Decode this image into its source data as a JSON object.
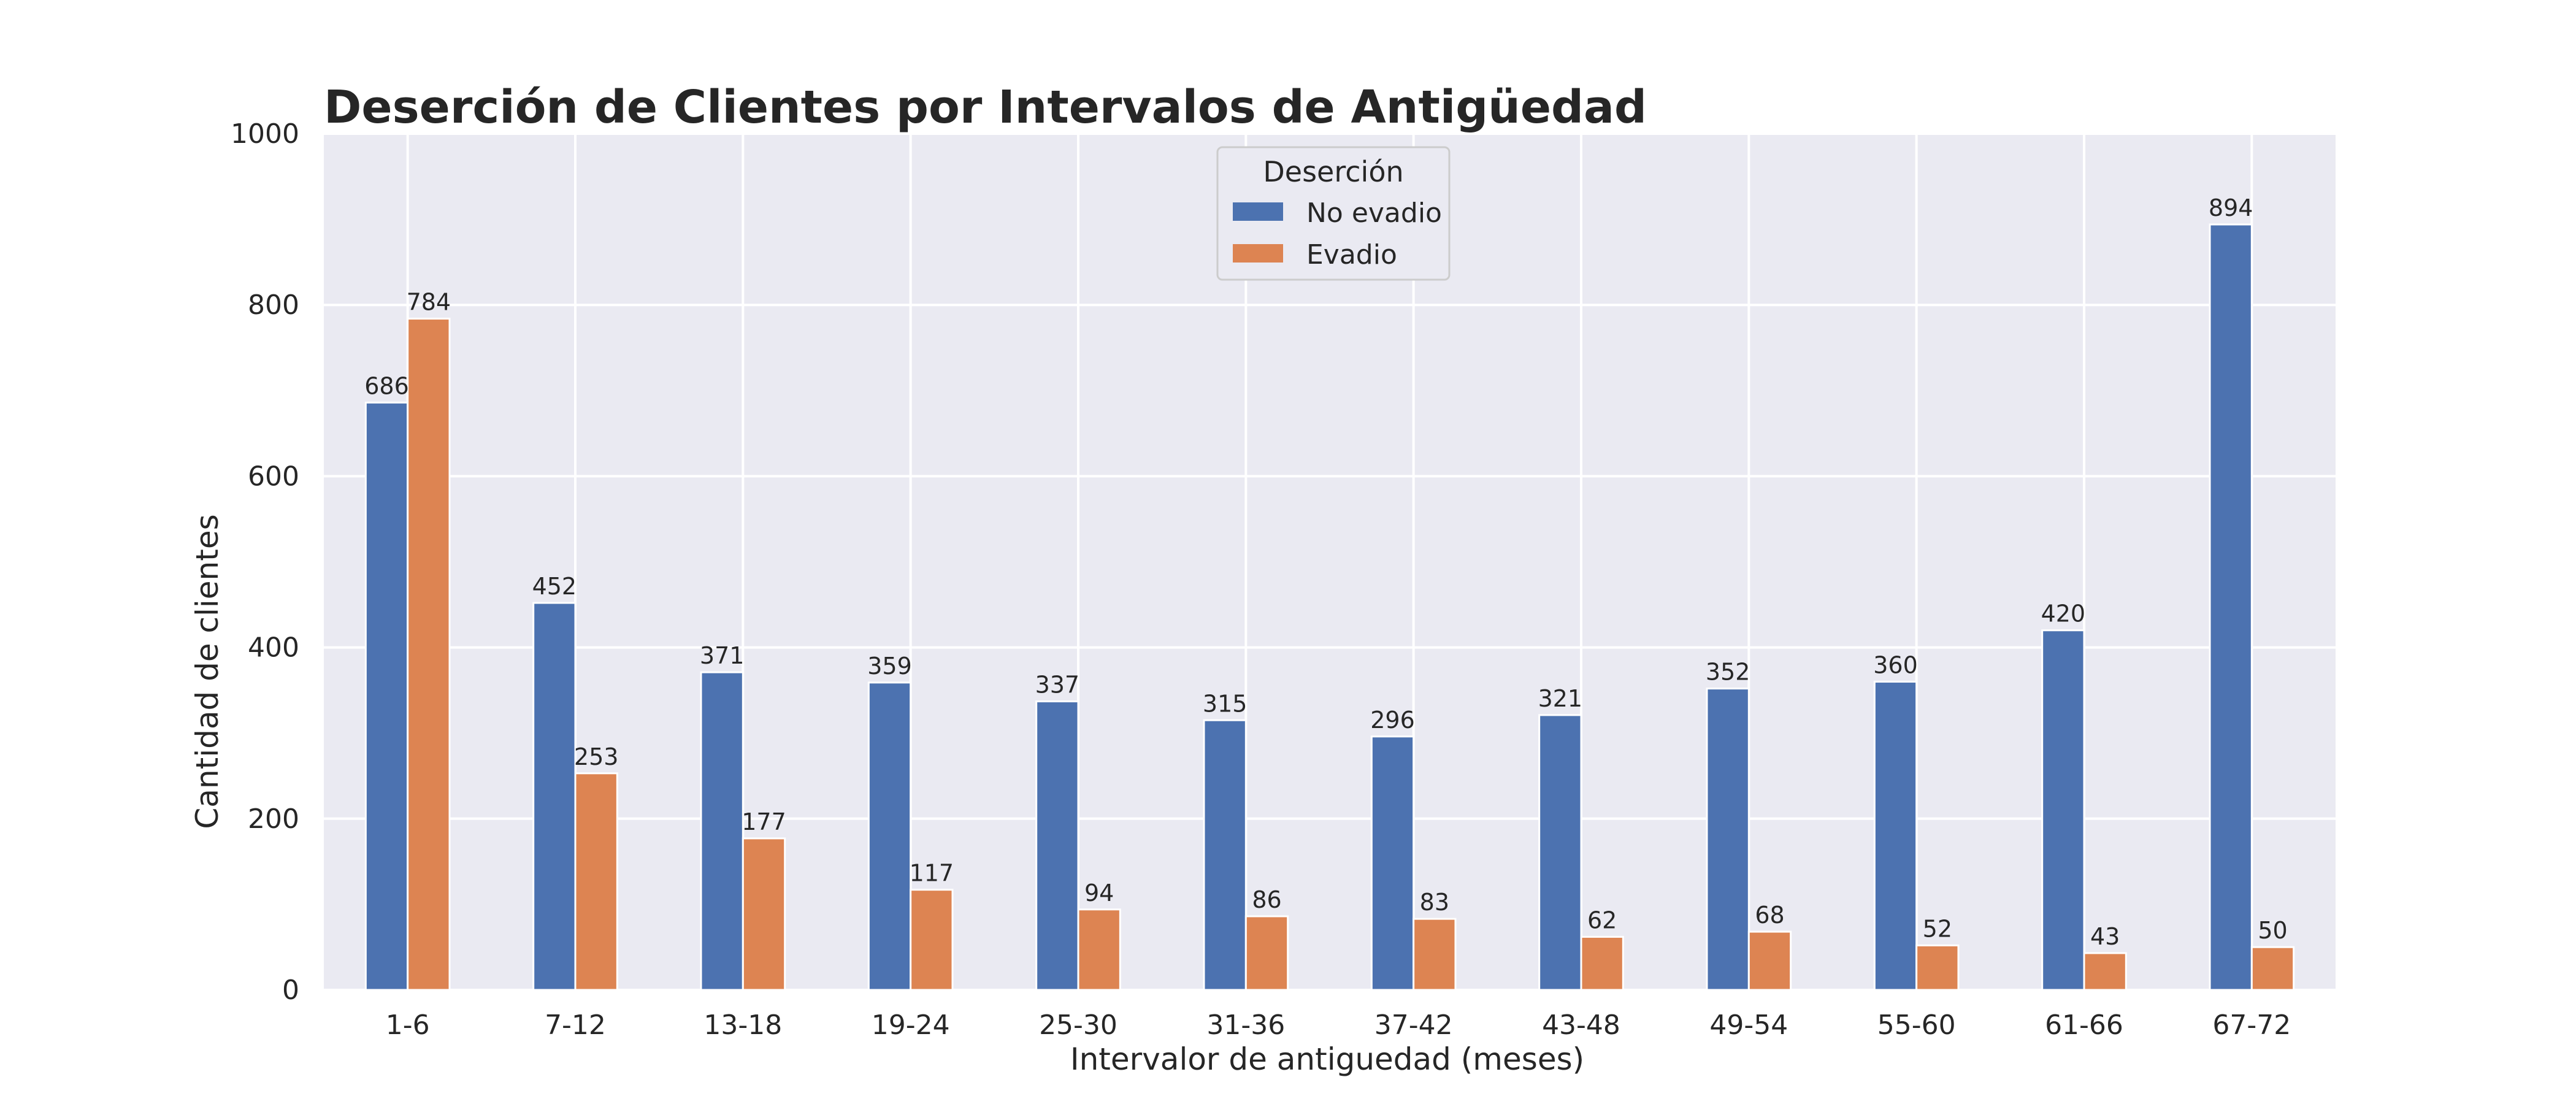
{
  "chart_data": {
    "type": "bar",
    "title": "Deserción de Clientes por Intervalos de Antigüedad",
    "xlabel": "Intervalor de antiguedad (meses)",
    "ylabel": "Cantidad de clientes",
    "ylim": [
      0,
      1000
    ],
    "yticks": [
      "0",
      "200",
      "400",
      "600",
      "800",
      "1000"
    ],
    "grid": true,
    "legend": {
      "title": "Deserción",
      "placement": "top-center"
    },
    "categories": [
      "1-6",
      "7-12",
      "13-18",
      "19-24",
      "25-30",
      "31-36",
      "37-42",
      "43-48",
      "49-54",
      "55-60",
      "61-66",
      "67-72"
    ],
    "series": [
      {
        "name": "No evadio",
        "color": "#4c72b0",
        "values": [
          686,
          452,
          371,
          359,
          337,
          315,
          296,
          321,
          352,
          360,
          420,
          894
        ]
      },
      {
        "name": "Evadio",
        "color": "#dd8452",
        "values": [
          784,
          253,
          177,
          117,
          94,
          86,
          83,
          62,
          68,
          52,
          43,
          50
        ]
      }
    ],
    "colors": {
      "plot_background": "#eaeaf2",
      "grid": "#ffffff"
    }
  }
}
